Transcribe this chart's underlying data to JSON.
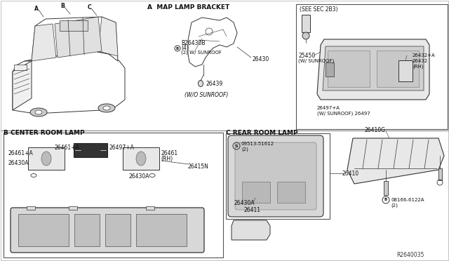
{
  "bg_color": "#ffffff",
  "line_color": "#333333",
  "text_color": "#111111",
  "diagram_id": "R2640035",
  "sec_A_label": "A  MAP LAMP BRACKET",
  "sec_A2_label": "(SEE SEC 2B3)",
  "sec_B_label": "B CENTER ROOM LAMP",
  "sec_C_label": "C REAR ROOM LAMP",
  "parts": {
    "26439": "26439",
    "26430B": "B26430B",
    "26430B_note1": "(4)",
    "26430B_note2": "(2) W/ SUNROOF",
    "26430": "26430",
    "wo_sunroof": "(W/O SUNROOF)",
    "25450": "25450",
    "25450_note": "(W/ SUNROOF)",
    "26432A": "26432+A",
    "26432": "26432",
    "26432_rh": "(RH)",
    "26497A": "26497+A",
    "26497_note": "(W/ SUNROOF) 26497",
    "26461A": "26461+A",
    "26497A_b": "26497+A",
    "26461": "26461",
    "26461_rh": "(RH)",
    "26430A_b1": "26430A",
    "26430A_b2": "26430A",
    "26415N": "26415N",
    "09513": "09513-51612",
    "09513_note": "(2)",
    "26430A_c": "26430A",
    "26411": "26411",
    "26410": "26410",
    "26410G": "26410G",
    "08166": "08166-6122A",
    "08166_note": "(2)"
  }
}
